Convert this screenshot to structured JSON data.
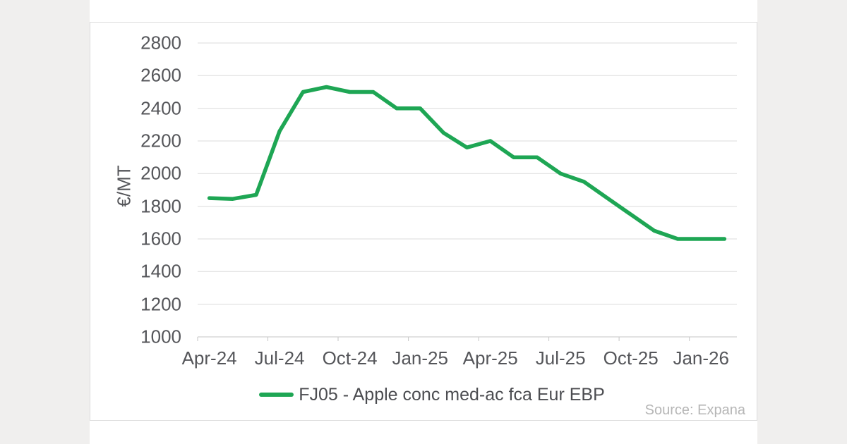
{
  "page": {
    "background_color": "#f0efee",
    "source_note": "Source: Expana"
  },
  "chart_data": {
    "type": "line",
    "title": "",
    "y_axis_title": "€/MT",
    "categories": [
      "Apr-24",
      "May-24",
      "Jun-24",
      "Jul-24",
      "Aug-24",
      "Sep-24",
      "Oct-24",
      "Nov-24",
      "Dec-24",
      "Jan-25",
      "Feb-25",
      "Mar-25",
      "Apr-25",
      "May-25",
      "Jun-25",
      "Jul-25",
      "Aug-25",
      "Sep-25",
      "Oct-25",
      "Nov-25",
      "Dec-25",
      "Jan-26",
      "Feb-26"
    ],
    "series": [
      {
        "name": "FJ05 - Apple conc med-ac fca Eur EBP",
        "color": "#1ea654",
        "values": [
          1850,
          1845,
          1870,
          2260,
          2500,
          2530,
          2500,
          2500,
          2400,
          2400,
          2250,
          2160,
          2200,
          2100,
          2100,
          2000,
          1950,
          1850,
          1750,
          1650,
          1600,
          1600,
          1600
        ]
      }
    ],
    "ylim": [
      1000,
      2800
    ],
    "yticks": [
      2800,
      2600,
      2400,
      2200,
      2000,
      1800,
      1600,
      1400,
      1200,
      1000
    ],
    "xticks": [
      "Apr-24",
      "Jul-24",
      "Oct-24",
      "Jan-25",
      "Apr-25",
      "Jul-25",
      "Oct-25",
      "Jan-26"
    ],
    "xtick_month_indices": [
      0,
      3,
      6,
      9,
      12,
      15,
      18,
      21
    ],
    "grid": "horizontal",
    "legend_position": "bottom",
    "source": "Expana"
  },
  "style": {
    "gridline_color": "#dbdbdb",
    "axis_line_color": "#c6c6c6",
    "axis_text_color": "#55565a"
  }
}
